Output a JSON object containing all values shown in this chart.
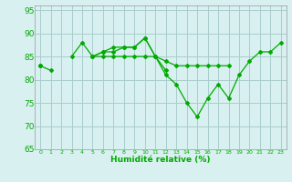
{
  "title": "",
  "xlabel": "Humidité relative (%)",
  "ylabel": "",
  "x": [
    0,
    1,
    2,
    3,
    4,
    5,
    6,
    7,
    8,
    9,
    10,
    11,
    12,
    13,
    14,
    15,
    16,
    17,
    18,
    19,
    20,
    21,
    22,
    23
  ],
  "series1": [
    83,
    82,
    null,
    85,
    88,
    85,
    86,
    87,
    87,
    87,
    89,
    85,
    82,
    null,
    null,
    null,
    null,
    null,
    null,
    null,
    null,
    null,
    null,
    null
  ],
  "series2": [
    83,
    null,
    null,
    null,
    null,
    85,
    86,
    86,
    87,
    87,
    89,
    85,
    81,
    79,
    75,
    72,
    76,
    79,
    76,
    81,
    84,
    86,
    86,
    88
  ],
  "series3": [
    83,
    null,
    null,
    null,
    null,
    85,
    85,
    85,
    85,
    85,
    85,
    85,
    84,
    83,
    83,
    83,
    83,
    83,
    83,
    null,
    null,
    null,
    null,
    null
  ],
  "line_color": "#00AA00",
  "bg_color": "#D8F0F0",
  "grid_color": "#AACCCC",
  "ylim": [
    65,
    96
  ],
  "yticks": [
    65,
    70,
    75,
    80,
    85,
    90,
    95
  ],
  "xlim": [
    -0.5,
    23.5
  ]
}
